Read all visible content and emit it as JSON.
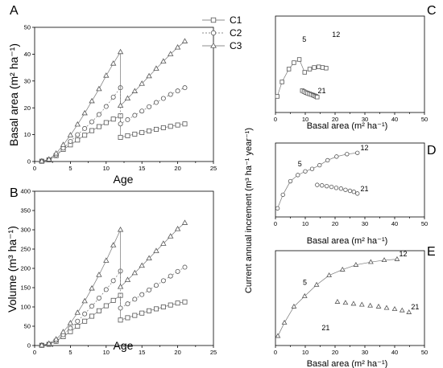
{
  "legend": {
    "entries": [
      {
        "label": "C1",
        "marker": "square"
      },
      {
        "label": "C2",
        "marker": "circle"
      },
      {
        "label": "C3",
        "marker": "triangle"
      }
    ]
  },
  "chart_data": [
    {
      "panel": "A",
      "type": "line",
      "xlabel": "Age",
      "ylabel": "Basal area (m² ha⁻¹)",
      "xlim": [
        0,
        25
      ],
      "ylim": [
        0,
        50
      ],
      "xticks": [
        0,
        5,
        10,
        15,
        20,
        25
      ],
      "yticks": [
        0,
        10,
        20,
        30,
        40,
        50
      ],
      "series": [
        {
          "name": "C1",
          "marker": "square",
          "dash": "",
          "x": [
            1,
            2,
            3,
            4,
            5,
            6,
            7,
            8,
            9,
            10,
            11,
            12,
            12,
            13,
            14,
            15,
            16,
            17,
            18,
            19,
            20,
            21
          ],
          "y": [
            0.1,
            0.6,
            2.2,
            4.5,
            6.2,
            8.0,
            9.8,
            11.5,
            13.0,
            14.5,
            15.8,
            17.0,
            9.0,
            9.6,
            10.2,
            10.8,
            11.4,
            12.0,
            12.6,
            13.1,
            13.6,
            14.0
          ]
        },
        {
          "name": "C2",
          "marker": "circle",
          "dash": "2,2",
          "x": [
            1,
            2,
            3,
            4,
            5,
            6,
            7,
            8,
            9,
            10,
            11,
            12,
            12,
            13,
            14,
            15,
            16,
            17,
            18,
            19,
            20,
            21
          ],
          "y": [
            0.1,
            0.7,
            2.5,
            5.0,
            7.5,
            10.0,
            12.3,
            14.8,
            17.5,
            20.5,
            24.0,
            27.5,
            14.0,
            15.6,
            17.2,
            18.8,
            20.4,
            22.0,
            23.5,
            25.0,
            26.3,
            27.5
          ]
        },
        {
          "name": "C3",
          "marker": "triangle",
          "dash": "",
          "x": [
            1,
            2,
            3,
            4,
            5,
            6,
            7,
            8,
            9,
            10,
            11,
            12,
            12,
            13,
            14,
            15,
            16,
            17,
            18,
            19,
            20,
            21
          ],
          "y": [
            0.1,
            0.8,
            3.0,
            6.2,
            9.8,
            13.8,
            18.0,
            22.5,
            27.0,
            32.0,
            36.5,
            40.8,
            20.8,
            23.5,
            26.2,
            29.0,
            31.8,
            34.6,
            37.3,
            40.0,
            42.5,
            44.8
          ]
        }
      ]
    },
    {
      "panel": "B",
      "type": "line",
      "xlabel": "Age",
      "ylabel": "Volume (m³ ha⁻¹)",
      "xlim": [
        0,
        25
      ],
      "ylim": [
        0,
        400
      ],
      "xticks": [
        0,
        5,
        10,
        15,
        20,
        25
      ],
      "yticks": [
        0,
        50,
        100,
        150,
        200,
        250,
        300,
        350,
        400
      ],
      "series": [
        {
          "name": "C1",
          "marker": "square",
          "dash": "",
          "x": [
            1,
            2,
            3,
            4,
            5,
            6,
            7,
            8,
            9,
            10,
            11,
            12,
            12,
            13,
            14,
            15,
            16,
            17,
            18,
            19,
            20,
            21
          ],
          "y": [
            0.5,
            3,
            11,
            23,
            36,
            50,
            63,
            76,
            90,
            103,
            117,
            130,
            66,
            72,
            78,
            84,
            90,
            95,
            100,
            105,
            110,
            113
          ]
        },
        {
          "name": "C2",
          "marker": "circle",
          "dash": "2,2",
          "x": [
            1,
            2,
            3,
            4,
            5,
            6,
            7,
            8,
            9,
            10,
            11,
            12,
            12,
            13,
            14,
            15,
            16,
            17,
            18,
            19,
            20,
            21
          ],
          "y": [
            0.5,
            4,
            13,
            28,
            45,
            63,
            82,
            102,
            123,
            145,
            168,
            193,
            97,
            108,
            120,
            132,
            144,
            156,
            168,
            180,
            192,
            203
          ]
        },
        {
          "name": "C3",
          "marker": "triangle",
          "dash": "",
          "x": [
            1,
            2,
            3,
            4,
            5,
            6,
            7,
            8,
            9,
            10,
            11,
            12,
            12,
            13,
            14,
            15,
            16,
            17,
            18,
            19,
            20,
            21
          ],
          "y": [
            0.5,
            5,
            16,
            35,
            58,
            85,
            115,
            148,
            183,
            220,
            260,
            300,
            152,
            170,
            188,
            207,
            226,
            245,
            264,
            283,
            302,
            318
          ]
        }
      ]
    },
    {
      "panel": "C",
      "type": "line",
      "xlabel": "Basal area (m² ha⁻¹)",
      "ylabel": "",
      "xlim": [
        0,
        50
      ],
      "ylim": [
        0,
        30
      ],
      "xticks": [
        0,
        10,
        20,
        30,
        40,
        50
      ],
      "annotations": [
        "5",
        "12",
        "21"
      ],
      "series": [
        {
          "name": "",
          "marker": "square",
          "connected": true,
          "x": [
            0.6,
            2.2,
            4.5,
            6.2,
            8.0,
            9.8,
            11.5,
            13.0,
            14.5,
            15.8,
            17.0
          ],
          "y": [
            5.0,
            9.5,
            13.5,
            15.5,
            16.5,
            12.5,
            13.5,
            14.0,
            14.2,
            14.0,
            13.8
          ]
        },
        {
          "name": "",
          "marker": "square",
          "connected": false,
          "x": [
            9.0,
            9.6,
            10.2,
            10.8,
            11.4,
            12.0,
            12.6,
            13.1,
            13.6,
            14.0
          ],
          "y": [
            6.8,
            6.5,
            6.2,
            6.0,
            5.8,
            5.6,
            5.4,
            5.2,
            5.0,
            4.8
          ]
        }
      ]
    },
    {
      "panel": "D",
      "type": "line",
      "xlabel": "Basal area (m² ha⁻¹)",
      "ylabel": "Current annual increment (m³ ha⁻¹ year⁻¹)",
      "xlim": [
        0,
        50
      ],
      "ylim": [
        0,
        30
      ],
      "xticks": [
        0,
        10,
        20,
        30,
        40,
        50
      ],
      "annotations": [
        "5",
        "12",
        "21"
      ],
      "series": [
        {
          "name": "",
          "marker": "circle",
          "connected": true,
          "x": [
            0.7,
            2.5,
            5.0,
            7.5,
            10.0,
            12.3,
            14.8,
            17.5,
            20.5,
            24.0,
            27.5
          ],
          "y": [
            3.5,
            9.0,
            14.5,
            17.0,
            18.5,
            19.5,
            21.0,
            23.0,
            24.5,
            25.5,
            26.0
          ]
        },
        {
          "name": "",
          "marker": "circle",
          "connected": false,
          "x": [
            14.0,
            15.6,
            17.2,
            18.8,
            20.4,
            22.0,
            23.5,
            25.0,
            26.3,
            27.5
          ],
          "y": [
            13.0,
            12.8,
            12.5,
            12.2,
            11.8,
            11.5,
            11.0,
            10.6,
            10.2,
            9.5
          ]
        }
      ]
    },
    {
      "panel": "E",
      "type": "line",
      "xlabel": "Basal area (m² ha⁻¹)",
      "ylabel": "",
      "xlim": [
        0,
        50
      ],
      "ylim": [
        0,
        50
      ],
      "xticks": [
        0,
        10,
        20,
        30,
        40,
        50
      ],
      "annotations": [
        "5",
        "12",
        "21",
        "21"
      ],
      "series": [
        {
          "name": "",
          "marker": "triangle",
          "connected": true,
          "x": [
            0.8,
            3.0,
            6.2,
            9.8,
            13.8,
            18.0,
            22.5,
            27.0,
            32.0,
            36.5,
            40.8
          ],
          "y": [
            5.0,
            12.0,
            20.5,
            26.0,
            32.0,
            37.0,
            40.0,
            42.5,
            44.0,
            45.0,
            45.5
          ]
        },
        {
          "name": "",
          "marker": "triangle",
          "connected": false,
          "x": [
            20.8,
            23.5,
            26.2,
            29.0,
            31.8,
            34.6,
            37.3,
            40.0,
            42.5,
            44.8
          ],
          "y": [
            23.0,
            22.5,
            22.0,
            21.5,
            21.0,
            20.5,
            19.8,
            19.2,
            18.5,
            17.5
          ]
        }
      ]
    }
  ]
}
